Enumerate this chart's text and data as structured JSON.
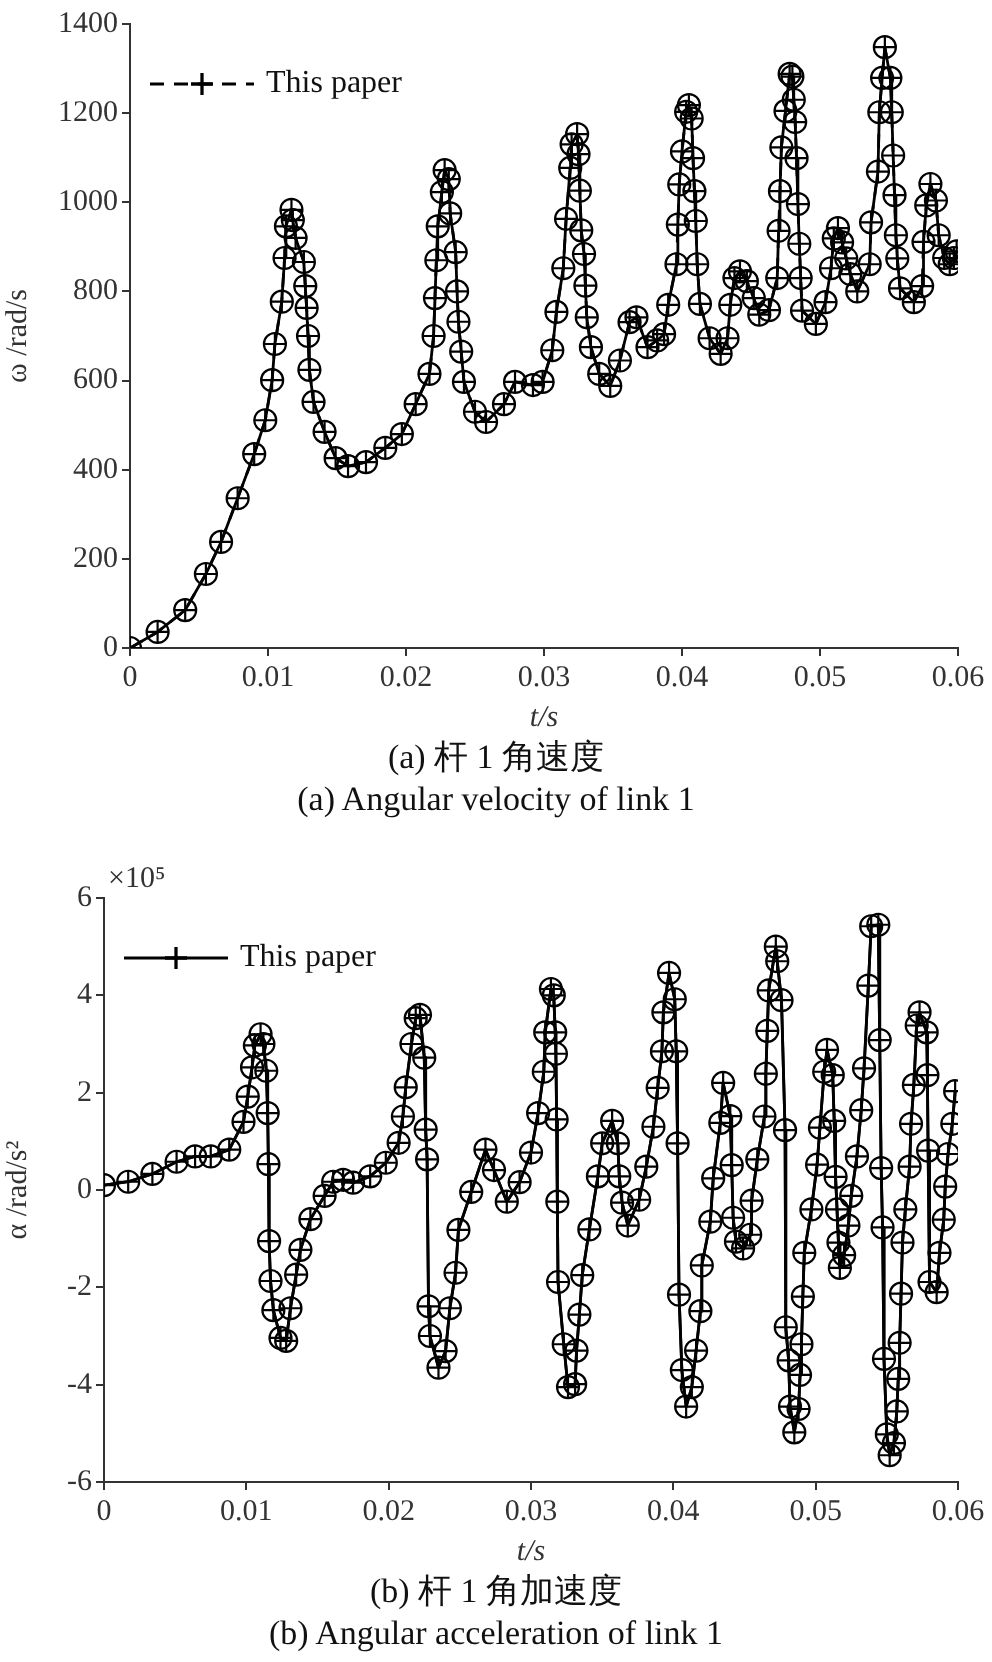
{
  "chart_data": [
    {
      "type": "line",
      "title": "(a)  杆 1 角速度",
      "subtitle": "(a) Angular velocity of link 1",
      "xlabel": "t/s",
      "ylabel": "ω /rad/s",
      "x": [
        0,
        0.002,
        0.004,
        0.0055,
        0.0066,
        0.0078,
        0.009,
        0.0098,
        0.0103,
        0.0105,
        0.011,
        0.0112,
        0.0113,
        0.0117,
        0.0118,
        0.012,
        0.0126,
        0.0127,
        0.0128,
        0.0129,
        0.013,
        0.0133,
        0.0141,
        0.0149,
        0.0158,
        0.0171,
        0.0185,
        0.0197,
        0.0207,
        0.0217,
        0.022,
        0.0221,
        0.0222,
        0.0223,
        0.0226,
        0.0228,
        0.0231,
        0.0232,
        0.0236,
        0.0237,
        0.0238,
        0.024,
        0.0242,
        0.025,
        0.0258,
        0.0271,
        0.0279,
        0.0292,
        0.0299,
        0.0306,
        0.0309,
        0.0314,
        0.0316,
        0.0319,
        0.032,
        0.0324,
        0.0325,
        0.0326,
        0.0327,
        0.0329,
        0.033,
        0.0331,
        0.0334,
        0.034,
        0.0348,
        0.0355,
        0.0362,
        0.0367,
        0.0375,
        0.0382,
        0.0387,
        0.039,
        0.0396,
        0.0397,
        0.0398,
        0.04,
        0.0403,
        0.0405,
        0.0407,
        0.0408,
        0.0409,
        0.041,
        0.0411,
        0.0413,
        0.042,
        0.0428,
        0.0433,
        0.0435,
        0.0438,
        0.0442,
        0.0447,
        0.0452,
        0.0456,
        0.0463,
        0.0469,
        0.047,
        0.0471,
        0.0472,
        0.0475,
        0.0478,
        0.048,
        0.0481,
        0.0482,
        0.0483,
        0.0484,
        0.0485,
        0.0486,
        0.0487,
        0.0497,
        0.0504,
        0.0508,
        0.051,
        0.0513,
        0.0516,
        0.0519,
        0.0522,
        0.0527,
        0.0536,
        0.0537,
        0.0542,
        0.0543,
        0.0545,
        0.0547,
        0.0551,
        0.0552,
        0.0553,
        0.0554,
        0.0555,
        0.0556,
        0.0558,
        0.0568,
        0.0574,
        0.0575,
        0.0577,
        0.058,
        0.0584,
        0.0586,
        0.059,
        0.0594,
        0.0597,
        0.0599
      ],
      "series": [
        {
          "color": "#000000",
          "marker": "circle",
          "line_style": "solid",
          "values": [
            0,
            36,
            85,
            166,
            238,
            336,
            435,
            511,
            601,
            682,
            777,
            875,
            946,
            983,
            960,
            920,
            866,
            812,
            763,
            700,
            624,
            552,
            485,
            426,
            408,
            417,
            449,
            480,
            547,
            615,
            700,
            785,
            870,
            946,
            1023,
            1072,
            1052,
            975,
            888,
            800,
            732,
            665,
            597,
            530,
            507,
            547,
            597,
            590,
            597,
            668,
            754,
            852,
            963,
            1077,
            1130,
            1153,
            1108,
            1026,
            937,
            884,
            813,
            742,
            675,
            615,
            588,
            645,
            731,
            742,
            675,
            690,
            704,
            770,
            861,
            950,
            1040,
            1114,
            1203,
            1218,
            1188,
            1099,
            1025,
            958,
            861,
            772,
            695,
            660,
            695,
            770,
            830,
            845,
            823,
            785,
            748,
            758,
            830,
            936,
            1025,
            1123,
            1205,
            1288,
            1282,
            1230,
            1180,
            1099,
            996,
            907,
            830,
            757,
            727,
            776,
            852,
            919,
            942,
            910,
            874,
            839,
            800,
            861,
            955,
            1069,
            1202,
            1279,
            1348,
            1279,
            1202,
            1105,
            1016,
            926,
            874,
            807,
            776,
            812,
            911,
            993,
            1041,
            1004,
            926,
            875,
            861,
            875,
            890
          ]
        },
        {
          "name": "This paper",
          "color": "#000000",
          "marker": "cross",
          "line_style": "dashed",
          "values": [
            0,
            36,
            85,
            166,
            238,
            336,
            435,
            511,
            601,
            682,
            777,
            875,
            946,
            983,
            960,
            920,
            866,
            812,
            763,
            700,
            624,
            552,
            485,
            426,
            408,
            417,
            449,
            480,
            547,
            615,
            700,
            785,
            870,
            946,
            1023,
            1072,
            1052,
            975,
            888,
            800,
            732,
            665,
            597,
            530,
            507,
            547,
            597,
            590,
            597,
            668,
            754,
            852,
            963,
            1077,
            1130,
            1153,
            1108,
            1026,
            937,
            884,
            813,
            742,
            675,
            615,
            588,
            645,
            731,
            742,
            675,
            690,
            704,
            770,
            861,
            950,
            1040,
            1114,
            1203,
            1218,
            1188,
            1099,
            1025,
            958,
            861,
            772,
            695,
            660,
            695,
            770,
            830,
            845,
            823,
            785,
            748,
            758,
            830,
            936,
            1025,
            1123,
            1205,
            1288,
            1282,
            1230,
            1180,
            1099,
            996,
            907,
            830,
            757,
            727,
            776,
            852,
            919,
            942,
            910,
            874,
            839,
            800,
            861,
            955,
            1069,
            1202,
            1279,
            1348,
            1279,
            1202,
            1105,
            1016,
            926,
            874,
            807,
            776,
            812,
            911,
            993,
            1041,
            1004,
            926,
            875,
            861,
            875,
            890
          ]
        }
      ],
      "xlim": [
        0,
        0.06
      ],
      "xticks": [
        0,
        0.01,
        0.02,
        0.03,
        0.04,
        0.05,
        0.06
      ],
      "ylim": [
        0,
        1400
      ],
      "yticks": [
        0,
        200,
        400,
        600,
        800,
        1000,
        1200,
        1400
      ],
      "legend": "top left"
    },
    {
      "type": "line",
      "title": "(b)  杆 1 角加速度",
      "subtitle": "(b) Angular acceleration of link 1",
      "xlabel": "t/s",
      "ylabel": "α /rad/s²",
      "annotations": [
        "×10⁵"
      ],
      "x": [
        0,
        0.0017,
        0.0034,
        0.0051,
        0.0064,
        0.0075,
        0.0088,
        0.0098,
        0.0101,
        0.0104,
        0.0106,
        0.011,
        0.0112,
        0.0114,
        0.0115,
        0.01155,
        0.0116,
        0.0117,
        0.0119,
        0.0124,
        0.0128,
        0.0131,
        0.0135,
        0.0138,
        0.0145,
        0.0155,
        0.0161,
        0.0168,
        0.0175,
        0.0187,
        0.0198,
        0.0207,
        0.021,
        0.0212,
        0.0216,
        0.0219,
        0.0222,
        0.0225,
        0.0226,
        0.0227,
        0.0228,
        0.0229,
        0.0235,
        0.024,
        0.0243,
        0.0247,
        0.0249,
        0.0258,
        0.0268,
        0.0274,
        0.0283,
        0.0292,
        0.03,
        0.0305,
        0.0309,
        0.031,
        0.0314,
        0.0316,
        0.0317,
        0.03175,
        0.0318,
        0.03185,
        0.0319,
        0.0323,
        0.0326,
        0.0331,
        0.0332,
        0.0334,
        0.0336,
        0.0341,
        0.0347,
        0.035,
        0.0357,
        0.0361,
        0.0362,
        0.0364,
        0.0368,
        0.0376,
        0.0381,
        0.0386,
        0.0389,
        0.0392,
        0.0393,
        0.0397,
        0.0401,
        0.0402,
        0.0403,
        0.0404,
        0.0406,
        0.0409,
        0.0413,
        0.0416,
        0.0419,
        0.042,
        0.0426,
        0.0428,
        0.0433,
        0.0435,
        0.044,
        0.0441,
        0.0442,
        0.0444,
        0.0449,
        0.0454,
        0.0455,
        0.0459,
        0.0464,
        0.0465,
        0.0466,
        0.0467,
        0.0472,
        0.0473,
        0.0476,
        0.04785,
        0.0479,
        0.0481,
        0.0482,
        0.0485,
        0.0488,
        0.0489,
        0.049,
        0.0491,
        0.0492,
        0.0497,
        0.0501,
        0.0503,
        0.0506,
        0.0508,
        0.0512,
        0.0513,
        0.0514,
        0.0515,
        0.0516,
        0.0517,
        0.052,
        0.0523,
        0.0525,
        0.0529,
        0.0532,
        0.0534,
        0.0537,
        0.0539,
        0.0544,
        0.0545,
        0.0546,
        0.0547,
        0.0548,
        0.055,
        0.0552,
        0.0555,
        0.0557,
        0.0558,
        0.0559,
        0.056,
        0.0561,
        0.0563,
        0.0566,
        0.0567,
        0.0569,
        0.0571,
        0.0573,
        0.0578,
        0.05785,
        0.0579,
        0.058,
        0.0585,
        0.0587,
        0.059,
        0.0591,
        0.0593,
        0.0596,
        0.0598
      ],
      "series": [
        {
          "color": "#000000",
          "marker": "circle",
          "line_style": "solid",
          "values": [
            0.1,
            0.17,
            0.33,
            0.58,
            0.69,
            0.69,
            0.83,
            1.4,
            1.92,
            2.52,
            2.97,
            3.2,
            3.0,
            2.45,
            1.58,
            0.53,
            -1.05,
            -1.87,
            -2.47,
            -3.04,
            -3.1,
            -2.43,
            -1.74,
            -1.23,
            -0.6,
            -0.12,
            0.17,
            0.21,
            0.15,
            0.28,
            0.56,
            0.97,
            1.51,
            2.11,
            3.0,
            3.53,
            3.6,
            2.72,
            1.24,
            0.63,
            -2.39,
            -3.0,
            -3.65,
            -3.31,
            -2.43,
            -1.7,
            -0.82,
            -0.04,
            0.83,
            0.41,
            -0.24,
            0.16,
            0.77,
            1.58,
            2.43,
            3.24,
            4.13,
            4.0,
            3.24,
            2.8,
            1.45,
            -0.24,
            -1.89,
            -3.17,
            -4.05,
            -3.99,
            -3.3,
            -2.56,
            -1.75,
            -0.81,
            0.28,
            0.96,
            1.42,
            0.96,
            0.28,
            -0.26,
            -0.73,
            -0.2,
            0.48,
            1.3,
            2.1,
            2.85,
            3.65,
            4.46,
            3.92,
            2.85,
            0.96,
            -2.15,
            -3.7,
            -4.45,
            -4.05,
            -3.3,
            -2.49,
            -1.55,
            -0.65,
            0.24,
            1.38,
            2.2,
            1.52,
            0.51,
            -0.57,
            -1.06,
            -1.2,
            -0.92,
            -0.22,
            0.63,
            1.51,
            2.39,
            3.27,
            4.1,
            5.0,
            4.7,
            3.9,
            1.23,
            -2.82,
            -3.5,
            -4.45,
            -4.98,
            -4.5,
            -3.8,
            -3.17,
            -2.19,
            -1.29,
            -0.4,
            0.52,
            1.28,
            2.43,
            2.88,
            2.36,
            1.42,
            0.27,
            -0.4,
            -1.08,
            -1.6,
            -1.34,
            -0.73,
            -0.12,
            0.69,
            1.64,
            2.5,
            4.2,
            5.42,
            5.45,
            3.08,
            0.45,
            -0.77,
            -3.47,
            -5.02,
            -5.45,
            -5.2,
            -4.55,
            -3.88,
            -3.14,
            -2.13,
            -1.08,
            -0.4,
            0.48,
            1.36,
            2.16,
            3.38,
            3.65,
            3.24,
            2.36,
            0.81,
            -1.89,
            -2.1,
            -1.29,
            -0.61,
            0.07,
            0.74,
            1.36,
            2.03
          ]
        },
        {
          "name": "This paper",
          "color": "#000000",
          "marker": "cross",
          "line_style": "solid",
          "values": [
            0.1,
            0.17,
            0.33,
            0.58,
            0.69,
            0.69,
            0.83,
            1.4,
            1.92,
            2.52,
            2.97,
            3.2,
            3.0,
            2.45,
            1.58,
            0.53,
            -1.05,
            -1.87,
            -2.47,
            -3.04,
            -3.1,
            -2.43,
            -1.74,
            -1.23,
            -0.6,
            -0.12,
            0.17,
            0.21,
            0.15,
            0.28,
            0.56,
            0.97,
            1.51,
            2.11,
            3.0,
            3.53,
            3.6,
            2.72,
            1.24,
            0.63,
            -2.39,
            -3.0,
            -3.65,
            -3.31,
            -2.43,
            -1.7,
            -0.82,
            -0.04,
            0.83,
            0.41,
            -0.24,
            0.16,
            0.77,
            1.58,
            2.43,
            3.24,
            4.13,
            4.0,
            3.24,
            2.8,
            1.45,
            -0.24,
            -1.89,
            -3.17,
            -4.05,
            -3.99,
            -3.3,
            -2.56,
            -1.75,
            -0.81,
            0.28,
            0.96,
            1.42,
            0.96,
            0.28,
            -0.26,
            -0.73,
            -0.2,
            0.48,
            1.3,
            2.1,
            2.85,
            3.65,
            4.46,
            3.92,
            2.85,
            0.96,
            -2.15,
            -3.7,
            -4.45,
            -4.05,
            -3.3,
            -2.49,
            -1.55,
            -0.65,
            0.24,
            1.38,
            2.2,
            1.52,
            0.51,
            -0.57,
            -1.06,
            -1.2,
            -0.92,
            -0.22,
            0.63,
            1.51,
            2.39,
            3.27,
            4.1,
            5.0,
            4.7,
            3.9,
            1.23,
            -2.82,
            -3.5,
            -4.45,
            -4.98,
            -4.5,
            -3.8,
            -3.17,
            -2.19,
            -1.29,
            -0.4,
            0.52,
            1.28,
            2.43,
            2.88,
            2.36,
            1.42,
            0.27,
            -0.4,
            -1.08,
            -1.6,
            -1.34,
            -0.73,
            -0.12,
            0.69,
            1.64,
            2.5,
            4.2,
            5.42,
            5.45,
            3.08,
            0.45,
            -0.77,
            -3.47,
            -5.02,
            -5.45,
            -5.2,
            -4.55,
            -3.88,
            -3.14,
            -2.13,
            -1.08,
            -0.4,
            0.48,
            1.36,
            2.16,
            3.38,
            3.65,
            3.24,
            2.36,
            0.81,
            -1.89,
            -2.1,
            -1.29,
            -0.61,
            0.07,
            0.74,
            1.36,
            2.03
          ]
        }
      ],
      "xlim": [
        0,
        0.06
      ],
      "xticks": [
        0,
        0.01,
        0.02,
        0.03,
        0.04,
        0.05,
        0.06
      ],
      "ylim": [
        -6,
        6
      ],
      "yticks": [
        -6,
        -4,
        -2,
        0,
        2,
        4,
        6
      ],
      "legend": "top left"
    }
  ]
}
